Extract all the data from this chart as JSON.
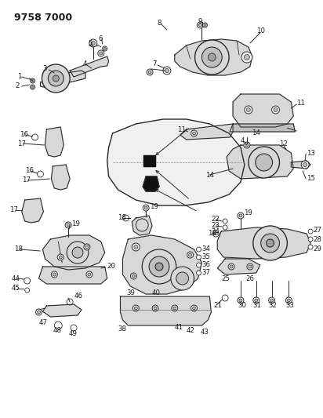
{
  "title": "9758 7000",
  "bg_color": "#ffffff",
  "fig_width": 4.12,
  "fig_height": 5.33,
  "dpi": 100,
  "lc": "#2a2a2a",
  "pc": "#1a1a1a",
  "fs": 6.2,
  "fs_title": 9,
  "fill_light": "#d8d8d8",
  "fill_mid": "#c0c0c0",
  "fill_dark": "#a0a0a0"
}
